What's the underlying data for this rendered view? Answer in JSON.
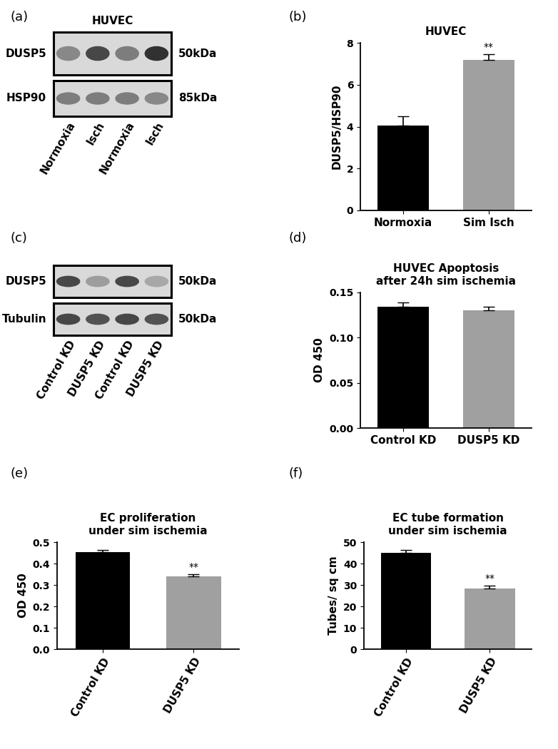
{
  "chart_data": [
    {
      "type": "bar",
      "panel": "(b)",
      "title": "HUVEC",
      "y_label": "DUSP5/HSP90",
      "categories": [
        "Normoxia",
        "Sim Isch"
      ],
      "values": [
        4.05,
        7.2
      ],
      "errors": [
        0.45,
        0.25
      ],
      "colors": [
        "#000000",
        "#a0a0a0"
      ],
      "significance": [
        null,
        "**"
      ],
      "ylim": [
        0,
        8
      ],
      "yticks": [
        0,
        2,
        4,
        6,
        8
      ]
    },
    {
      "type": "bar",
      "panel": "(d)",
      "title": "HUVEC Apoptosis\nafter 24h sim ischemia",
      "y_label": "OD 450",
      "categories": [
        "Control KD",
        "DUSP5 KD"
      ],
      "values": [
        0.134,
        0.13
      ],
      "errors": [
        0.005,
        0.004
      ],
      "colors": [
        "#000000",
        "#a0a0a0"
      ],
      "ylim": [
        0,
        0.15
      ],
      "yticks": [
        {
          "value": 0,
          "label": "0.00"
        },
        {
          "value": 0.05,
          "label": "0.05"
        },
        {
          "value": 0.1,
          "label": "0.10"
        },
        {
          "value": 0.15,
          "label": "0.15"
        }
      ]
    },
    {
      "type": "bar",
      "panel": "(e)",
      "title": "EC proliferation\nunder sim ischemia",
      "y_label": "OD 450",
      "categories": [
        "Control KD",
        "DUSP5 KD"
      ],
      "values": [
        0.455,
        0.34
      ],
      "errors": [
        0.008,
        0.01
      ],
      "colors": [
        "#000000",
        "#a0a0a0"
      ],
      "significance": [
        null,
        "**"
      ],
      "ylim": [
        0,
        0.5
      ],
      "yticks": [
        {
          "value": 0,
          "label": "0.0"
        },
        0.1,
        0.2,
        0.3,
        0.4,
        0.5
      ]
    },
    {
      "type": "bar",
      "panel": "(f)",
      "title": "EC tube formation\nunder sim ischemia",
      "y_label": "Tubes/ sq cm",
      "categories": [
        "Control KD",
        "DUSP5 KD"
      ],
      "values": [
        45,
        28.5
      ],
      "errors": [
        1.2,
        1.2
      ],
      "colors": [
        "#000000",
        "#a0a0a0"
      ],
      "significance": [
        null,
        "**"
      ],
      "ylim": [
        0,
        50
      ],
      "yticks": [
        0,
        10,
        20,
        30,
        40,
        50
      ]
    }
  ],
  "blots": [
    {
      "panel": "(a)",
      "title": "HUVEC",
      "lanes": [
        "Normoxia",
        "Isch",
        "Normoxia",
        "Isch"
      ],
      "rows": [
        {
          "label": "DUSP5",
          "mw": "50kDa",
          "bands": [
            0.55,
            0.85,
            0.6,
            0.95
          ]
        },
        {
          "label": "HSP90",
          "mw": "85kDa",
          "bands": [
            0.6,
            0.6,
            0.6,
            0.55
          ]
        }
      ]
    },
    {
      "panel": "(c)",
      "lanes": [
        "Control KD",
        "DUSP5 KD",
        "Control KD",
        "DUSP5 KD"
      ],
      "rows": [
        {
          "label": "DUSP5",
          "mw": "50kDa",
          "bands": [
            0.85,
            0.45,
            0.85,
            0.4
          ]
        },
        {
          "label": "Tubulin",
          "mw": "50kDa",
          "bands": [
            0.85,
            0.8,
            0.85,
            0.8
          ]
        }
      ]
    }
  ]
}
